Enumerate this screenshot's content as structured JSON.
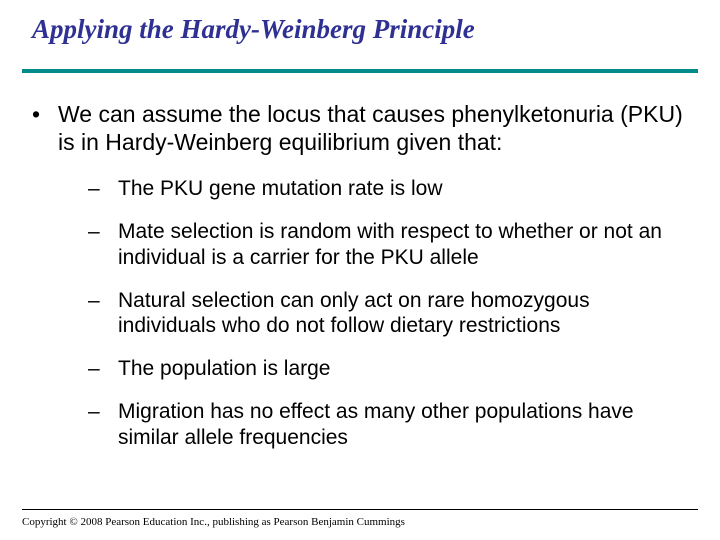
{
  "title": "Applying the Hardy-Weinberg Principle",
  "colors": {
    "title_color": "#2e3192",
    "rule_color": "#008b8b",
    "text_color": "#000000",
    "background": "#ffffff"
  },
  "typography": {
    "title_font": "Times New Roman",
    "title_style": "italic bold",
    "title_fontsize": 27,
    "body_font": "Arial",
    "main_bullet_fontsize": 23,
    "sub_bullet_fontsize": 21,
    "footer_font": "Times New Roman",
    "footer_fontsize": 11
  },
  "main_bullet": {
    "marker": "•",
    "text": "We can assume the locus that causes phenylketonuria (PKU) is in Hardy-Weinberg equilibrium given that:"
  },
  "sub_bullets": {
    "marker": "–",
    "items": [
      "The PKU gene mutation rate is low",
      "Mate selection is random with respect to whether or not an individual is a carrier for the PKU allele",
      "Natural selection can only act on rare homozygous individuals who do not follow dietary restrictions",
      "The population is large",
      "Migration has no effect as many other populations have similar allele frequencies"
    ]
  },
  "footer": "Copyright © 2008 Pearson Education Inc., publishing as Pearson Benjamin Cummings"
}
